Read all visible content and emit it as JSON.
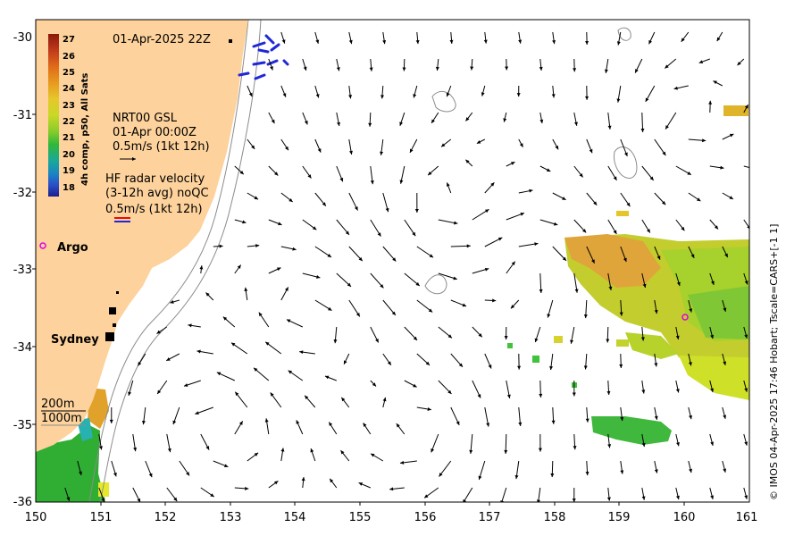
{
  "map": {
    "date_label": "01-Apr-2025 22Z",
    "colorbar": {
      "title": "4h comp, p50, All Sats",
      "ticks": [
        "27",
        "26",
        "25",
        "24",
        "23",
        "22",
        "21",
        "20",
        "19",
        "18"
      ],
      "colors": [
        "#8b1a0a",
        "#c0391b",
        "#e06a1a",
        "#e79a1f",
        "#e6c72a",
        "#c9d827",
        "#88cc2a",
        "#2fb83a",
        "#1aa89a",
        "#1a84c4",
        "#2a4fc9",
        "#1a1f8a"
      ]
    },
    "gsl_legend": {
      "line1": "NRT00 GSL",
      "line2": "01-Apr 00:00Z",
      "line3": "0.5m/s (1kt 12h)"
    },
    "radar_legend": {
      "line1": "HF radar velocity",
      "line2": "(3-12h avg) noQC",
      "line3": "0.5m/s (1kt 12h)"
    },
    "places": {
      "argo": "Argo",
      "sydney": "Sydney",
      "depth_200": "200m",
      "depth_1000": "1000m"
    },
    "axes": {
      "x_ticks": [
        "150",
        "151",
        "152",
        "153",
        "154",
        "155",
        "156",
        "157",
        "158",
        "159",
        "160",
        "161"
      ],
      "y_ticks": [
        "-30",
        "-31",
        "-32",
        "-33",
        "-34",
        "-35",
        "-36"
      ]
    },
    "credit": "© IMOS 04-Apr-2025 17:46 Hobart; Tscale=CARS+[-1 1]",
    "colors": {
      "land": "#fdd29c",
      "arrow": "#000000",
      "radar": "#1e28d8",
      "argo": "#e000e0"
    }
  }
}
